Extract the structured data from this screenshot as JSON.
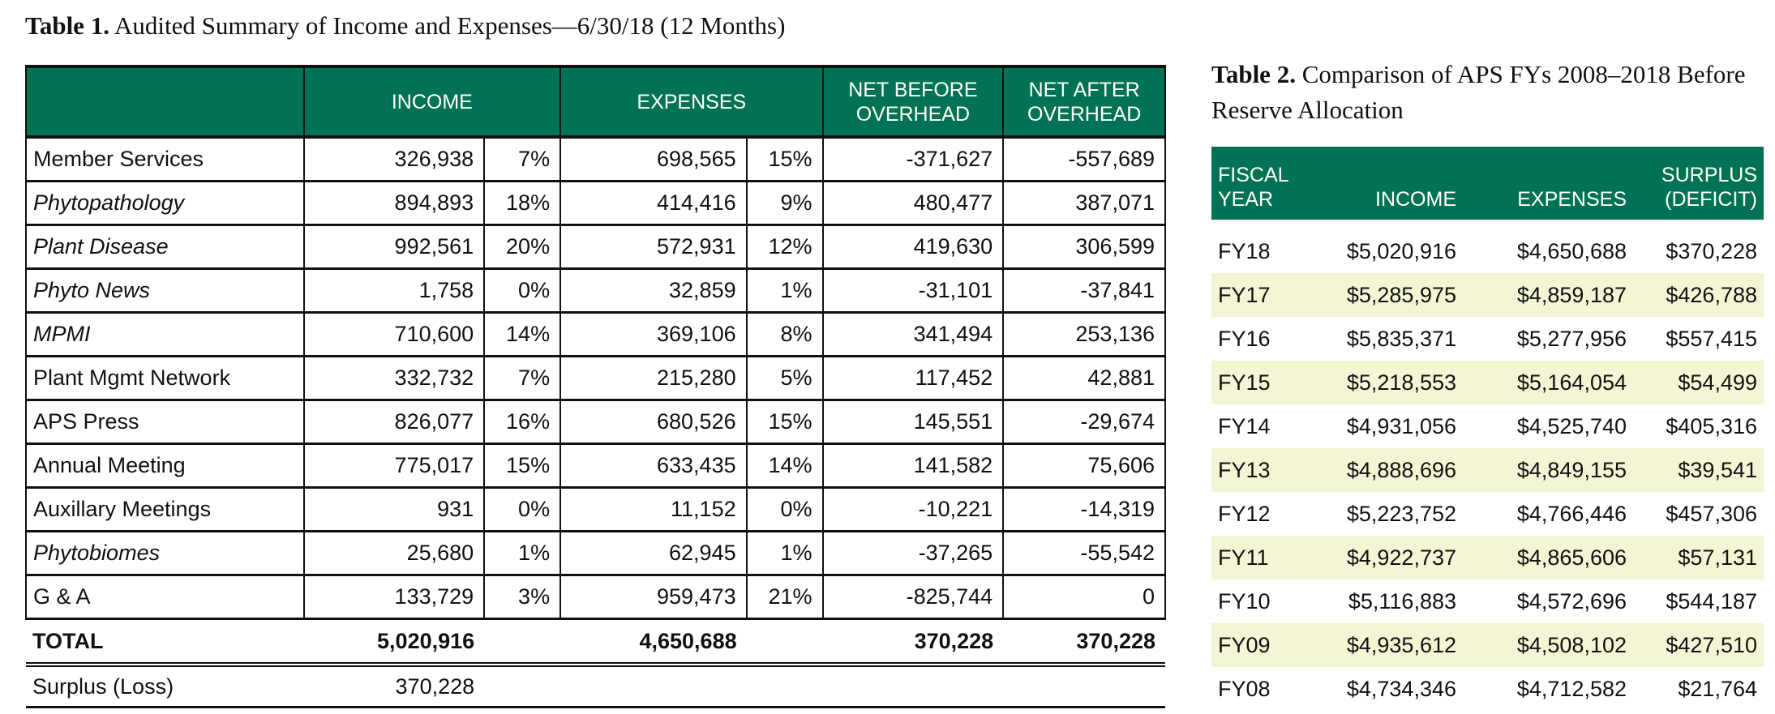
{
  "table1": {
    "caption_bold": "Table 1.",
    "caption_text": " Audited Summary of Income and Expenses—6/30/18 (12 Months)",
    "headers": [
      "",
      "INCOME",
      "EXPENSES",
      "NET BEFORE OVERHEAD",
      "NET AFTER OVERHEAD"
    ],
    "rows": [
      {
        "label": "Member Services",
        "italic": false,
        "income": "326,938",
        "income_pct": "7%",
        "expenses": "698,565",
        "expenses_pct": "15%",
        "net_before": "-371,627",
        "net_after": "-557,689"
      },
      {
        "label": "Phytopathology",
        "italic": true,
        "income": "894,893",
        "income_pct": "18%",
        "expenses": "414,416",
        "expenses_pct": "9%",
        "net_before": "480,477",
        "net_after": "387,071"
      },
      {
        "label": "Plant Disease",
        "italic": true,
        "income": "992,561",
        "income_pct": "20%",
        "expenses": "572,931",
        "expenses_pct": "12%",
        "net_before": "419,630",
        "net_after": "306,599"
      },
      {
        "label": "Phyto News",
        "italic": true,
        "income": "1,758",
        "income_pct": "0%",
        "expenses": "32,859",
        "expenses_pct": "1%",
        "net_before": "-31,101",
        "net_after": "-37,841"
      },
      {
        "label": "MPMI",
        "italic": true,
        "income": "710,600",
        "income_pct": "14%",
        "expenses": "369,106",
        "expenses_pct": "8%",
        "net_before": "341,494",
        "net_after": "253,136"
      },
      {
        "label": "Plant Mgmt Network",
        "italic": false,
        "income": "332,732",
        "income_pct": "7%",
        "expenses": "215,280",
        "expenses_pct": "5%",
        "net_before": "117,452",
        "net_after": "42,881"
      },
      {
        "label": "APS Press",
        "italic": false,
        "income": "826,077",
        "income_pct": "16%",
        "expenses": "680,526",
        "expenses_pct": "15%",
        "net_before": "145,551",
        "net_after": "-29,674"
      },
      {
        "label": "Annual Meeting",
        "italic": false,
        "income": "775,017",
        "income_pct": "15%",
        "expenses": "633,435",
        "expenses_pct": "14%",
        "net_before": "141,582",
        "net_after": "75,606"
      },
      {
        "label": "Auxillary Meetings",
        "italic": false,
        "income": "931",
        "income_pct": "0%",
        "expenses": "11,152",
        "expenses_pct": "0%",
        "net_before": "-10,221",
        "net_after": "-14,319"
      },
      {
        "label": "Phytobiomes",
        "italic": true,
        "income": "25,680",
        "income_pct": "1%",
        "expenses": "62,945",
        "expenses_pct": "1%",
        "net_before": "-37,265",
        "net_after": "-55,542"
      },
      {
        "label": "G & A",
        "italic": false,
        "income": "133,729",
        "income_pct": "3%",
        "expenses": "959,473",
        "expenses_pct": "21%",
        "net_before": "-825,744",
        "net_after": "0"
      }
    ],
    "total": {
      "label": "TOTAL",
      "income": "5,020,916",
      "expenses": "4,650,688",
      "net_before": "370,228",
      "net_after": "370,228"
    },
    "surplus": {
      "label": "Surplus (Loss)",
      "value": "370,228"
    }
  },
  "table2": {
    "caption_bold": "Table 2.",
    "caption_text": " Comparison of APS FYs 2008–2018 Before Reserve Allocation",
    "headers": [
      "FISCAL YEAR",
      "INCOME",
      "EXPENSES",
      "SURPLUS (DEFICIT)"
    ],
    "rows": [
      [
        "FY18",
        "$5,020,916",
        "$4,650,688",
        "$370,228"
      ],
      [
        "FY17",
        "$5,285,975",
        "$4,859,187",
        "$426,788"
      ],
      [
        "FY16",
        "$5,835,371",
        "$5,277,956",
        "$557,415"
      ],
      [
        "FY15",
        "$5,218,553",
        "$5,164,054",
        "$54,499"
      ],
      [
        "FY14",
        "$4,931,056",
        "$4,525,740",
        "$405,316"
      ],
      [
        "FY13",
        "$4,888,696",
        "$4,849,155",
        "$39,541"
      ],
      [
        "FY12",
        "$5,223,752",
        "$4,766,446",
        "$457,306"
      ],
      [
        "FY11",
        "$4,922,737",
        "$4,865,606",
        "$57,131"
      ],
      [
        "FY10",
        "$5,116,883",
        "$4,572,696",
        "$544,187"
      ],
      [
        "FY09",
        "$4,935,612",
        "$4,508,102",
        "$427,510"
      ],
      [
        "FY08",
        "$4,734,346",
        "$4,712,582",
        "$21,764"
      ]
    ]
  },
  "colors": {
    "header_green": "#017253",
    "stripe": "#f3f5d5"
  }
}
